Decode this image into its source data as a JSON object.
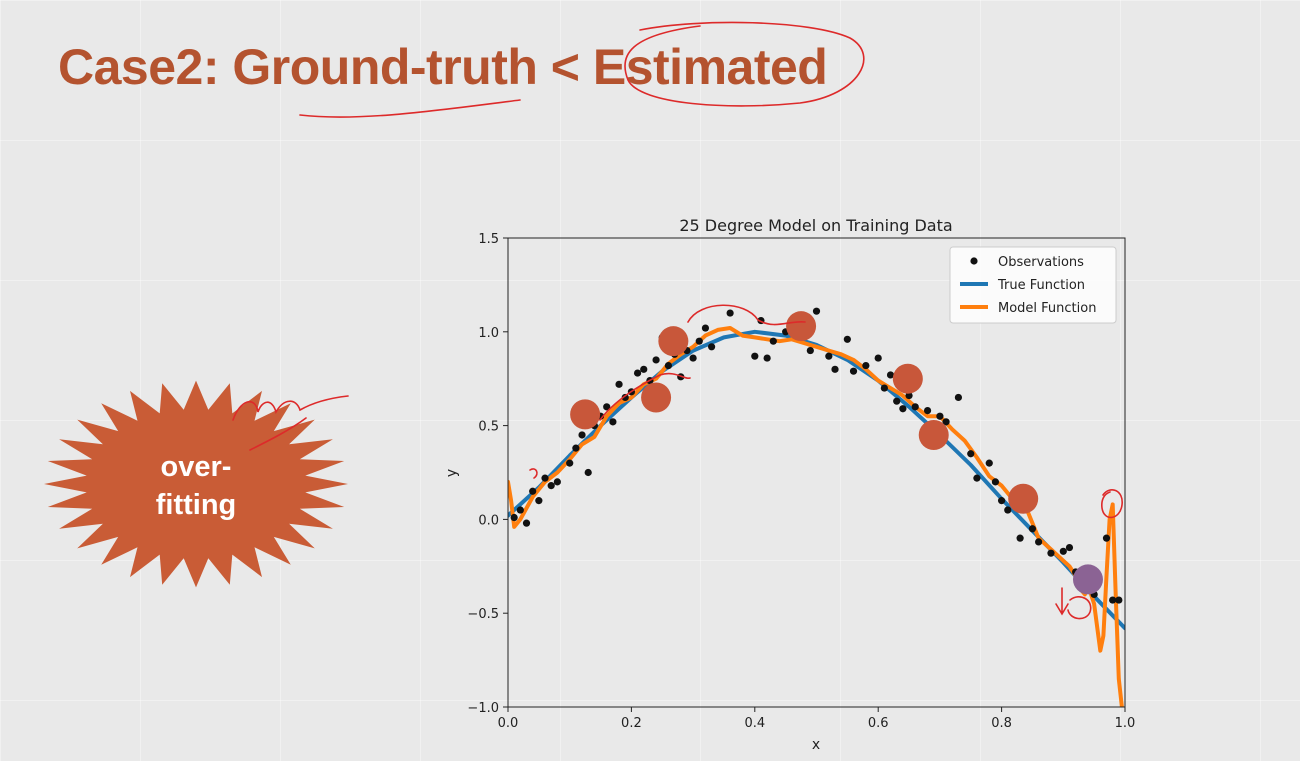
{
  "slide": {
    "title": "Case2: Ground-truth < Estimated",
    "burst_line1": "over-",
    "burst_line2": "fitting"
  },
  "colors": {
    "title": "#b4532f",
    "burst": "#c95c36",
    "observation": "#111111",
    "true_function": "#1f77b4",
    "model_function": "#ff7f0e",
    "test_marker": "#c8573a",
    "test_marker_highlight": "#8b6394",
    "ink": "#dd2a2a"
  },
  "chart_data": {
    "type": "scatter",
    "title": "25 Degree Model on Training Data",
    "xlabel": "x",
    "ylabel": "y",
    "xlim": [
      0.0,
      1.0
    ],
    "ylim": [
      -1.0,
      1.5
    ],
    "xticks": [
      "0.0",
      "0.2",
      "0.4",
      "0.6",
      "0.8",
      "1.0"
    ],
    "yticks": [
      "−1.0",
      "−0.5",
      "0.0",
      "0.5",
      "1.0",
      "1.5"
    ],
    "xtick_values": [
      0.0,
      0.2,
      0.4,
      0.6,
      0.8,
      1.0
    ],
    "ytick_values": [
      -1.0,
      -0.5,
      0.0,
      0.5,
      1.0,
      1.5
    ],
    "grid": false,
    "legend_position": "top-right",
    "legend": [
      "Observations",
      "True Function",
      "Model Function"
    ],
    "series": [
      {
        "name": "Observations",
        "kind": "scatter",
        "x": [
          0.01,
          0.02,
          0.03,
          0.04,
          0.05,
          0.06,
          0.07,
          0.08,
          0.1,
          0.11,
          0.12,
          0.13,
          0.14,
          0.15,
          0.16,
          0.17,
          0.18,
          0.19,
          0.2,
          0.21,
          0.22,
          0.23,
          0.24,
          0.25,
          0.26,
          0.27,
          0.28,
          0.29,
          0.3,
          0.31,
          0.32,
          0.33,
          0.36,
          0.4,
          0.41,
          0.42,
          0.43,
          0.45,
          0.47,
          0.49,
          0.5,
          0.52,
          0.53,
          0.55,
          0.56,
          0.58,
          0.6,
          0.61,
          0.62,
          0.63,
          0.64,
          0.65,
          0.66,
          0.68,
          0.7,
          0.71,
          0.73,
          0.75,
          0.76,
          0.78,
          0.79,
          0.8,
          0.81,
          0.83,
          0.85,
          0.86,
          0.88,
          0.9,
          0.91,
          0.92,
          0.93,
          0.95,
          0.97,
          0.98,
          0.99
        ],
        "y": [
          0.01,
          0.05,
          -0.02,
          0.15,
          0.1,
          0.22,
          0.18,
          0.2,
          0.3,
          0.38,
          0.45,
          0.25,
          0.5,
          0.55,
          0.6,
          0.52,
          0.72,
          0.65,
          0.68,
          0.78,
          0.8,
          0.74,
          0.85,
          0.97,
          0.82,
          0.88,
          0.76,
          0.9,
          0.86,
          0.95,
          1.02,
          0.92,
          1.1,
          0.87,
          1.06,
          0.86,
          0.95,
          1.0,
          1.05,
          0.9,
          1.11,
          0.87,
          0.8,
          0.96,
          0.79,
          0.82,
          0.86,
          0.7,
          0.77,
          0.63,
          0.59,
          0.66,
          0.6,
          0.58,
          0.55,
          0.52,
          0.65,
          0.35,
          0.22,
          0.3,
          0.2,
          0.1,
          0.05,
          -0.1,
          -0.05,
          -0.12,
          -0.18,
          -0.17,
          -0.15,
          -0.28,
          -0.36,
          -0.4,
          -0.1,
          -0.43,
          -0.43
        ]
      },
      {
        "name": "True Function",
        "kind": "line",
        "x": [
          0.0,
          0.05,
          0.1,
          0.15,
          0.2,
          0.25,
          0.3,
          0.35,
          0.4,
          0.45,
          0.5,
          0.55,
          0.6,
          0.65,
          0.7,
          0.75,
          0.8,
          0.85,
          0.9,
          0.95,
          1.0
        ],
        "y": [
          0.02,
          0.17,
          0.34,
          0.5,
          0.65,
          0.79,
          0.9,
          0.97,
          1.0,
          0.98,
          0.93,
          0.85,
          0.74,
          0.6,
          0.45,
          0.29,
          0.11,
          -0.06,
          -0.23,
          -0.41,
          -0.58
        ]
      },
      {
        "name": "Model Function",
        "kind": "line",
        "x": [
          0.0,
          0.005,
          0.01,
          0.02,
          0.04,
          0.06,
          0.08,
          0.1,
          0.12,
          0.14,
          0.16,
          0.18,
          0.2,
          0.22,
          0.24,
          0.26,
          0.28,
          0.3,
          0.32,
          0.34,
          0.36,
          0.38,
          0.4,
          0.42,
          0.44,
          0.46,
          0.48,
          0.5,
          0.52,
          0.54,
          0.56,
          0.58,
          0.6,
          0.62,
          0.64,
          0.66,
          0.68,
          0.7,
          0.72,
          0.74,
          0.76,
          0.78,
          0.8,
          0.82,
          0.84,
          0.86,
          0.88,
          0.9,
          0.91,
          0.92,
          0.93,
          0.935,
          0.94,
          0.95,
          0.96,
          0.965,
          0.97,
          0.975,
          0.98,
          0.985,
          0.99,
          0.995
        ],
        "y": [
          0.2,
          0.1,
          -0.04,
          0.0,
          0.12,
          0.2,
          0.25,
          0.32,
          0.4,
          0.44,
          0.55,
          0.62,
          0.65,
          0.72,
          0.75,
          0.83,
          0.88,
          0.92,
          0.98,
          1.01,
          1.02,
          0.98,
          0.97,
          0.96,
          0.95,
          0.96,
          0.94,
          0.92,
          0.9,
          0.88,
          0.85,
          0.8,
          0.74,
          0.7,
          0.66,
          0.6,
          0.55,
          0.55,
          0.48,
          0.42,
          0.33,
          0.23,
          0.18,
          0.1,
          0.06,
          -0.1,
          -0.16,
          -0.22,
          -0.25,
          -0.3,
          -0.38,
          -0.4,
          -0.35,
          -0.45,
          -0.7,
          -0.62,
          -0.3,
          0.0,
          0.08,
          -0.4,
          -0.85,
          -1.0
        ]
      },
      {
        "name": "",
        "kind": "large-markers",
        "x": [
          0.125,
          0.24,
          0.268,
          0.475,
          0.648,
          0.69,
          0.835
        ],
        "y": [
          0.56,
          0.65,
          0.95,
          1.03,
          0.75,
          0.45,
          0.11
        ]
      },
      {
        "name": "",
        "kind": "highlight-marker",
        "x": [
          0.94
        ],
        "y": [
          -0.32
        ]
      }
    ]
  }
}
